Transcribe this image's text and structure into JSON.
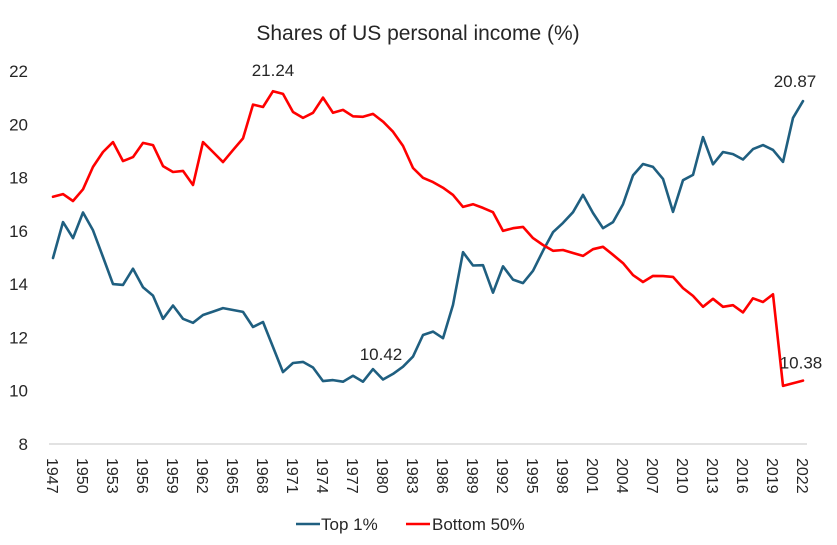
{
  "chart_data": {
    "type": "line",
    "title": "Shares of US personal income (%)",
    "xlabel": "",
    "ylabel": "",
    "ylim": [
      8,
      22
    ],
    "yticks": [
      "8",
      "10",
      "12",
      "14",
      "16",
      "18",
      "20",
      "22"
    ],
    "grid": false,
    "legend_position": "bottom",
    "x": [
      1947,
      1948,
      1949,
      1950,
      1951,
      1952,
      1953,
      1954,
      1955,
      1956,
      1957,
      1958,
      1959,
      1960,
      1961,
      1962,
      1963,
      1964,
      1965,
      1966,
      1967,
      1968,
      1969,
      1970,
      1971,
      1972,
      1973,
      1974,
      1975,
      1976,
      1977,
      1978,
      1979,
      1980,
      1981,
      1982,
      1983,
      1984,
      1985,
      1986,
      1987,
      1988,
      1989,
      1990,
      1991,
      1992,
      1993,
      1994,
      1995,
      1996,
      1997,
      1998,
      1999,
      2000,
      2001,
      2002,
      2003,
      2004,
      2005,
      2006,
      2007,
      2008,
      2009,
      2010,
      2011,
      2012,
      2013,
      2014,
      2015,
      2016,
      2017,
      2018,
      2019,
      2020,
      2021,
      2022
    ],
    "xtick_labels": [
      "1947",
      "1950",
      "1953",
      "1956",
      "1959",
      "1962",
      "1965",
      "1968",
      "1971",
      "1974",
      "1977",
      "1980",
      "1983",
      "1986",
      "1989",
      "1992",
      "1995",
      "1998",
      "2001",
      "2004",
      "2007",
      "2010",
      "2013",
      "2016",
      "2019",
      "2022"
    ],
    "series": [
      {
        "name": "Top 1%",
        "color": "#1f5f80",
        "values": [
          14.98,
          16.33,
          15.73,
          16.69,
          16.02,
          15.02,
          14.0,
          13.97,
          14.58,
          13.88,
          13.57,
          12.7,
          13.2,
          12.7,
          12.55,
          12.84,
          12.97,
          13.1,
          13.03,
          12.96,
          12.39,
          12.58,
          11.64,
          10.7,
          11.04,
          11.08,
          10.87,
          10.36,
          10.4,
          10.34,
          10.56,
          10.34,
          10.81,
          10.42,
          10.63,
          10.9,
          11.28,
          12.09,
          12.22,
          11.97,
          13.22,
          15.2,
          14.7,
          14.71,
          13.68,
          14.67,
          14.17,
          14.04,
          14.5,
          15.25,
          15.95,
          16.3,
          16.7,
          17.35,
          16.67,
          16.1,
          16.33,
          17.0,
          18.08,
          18.51,
          18.4,
          17.95,
          16.71,
          17.9,
          18.1,
          19.52,
          18.5,
          18.96,
          18.88,
          18.68,
          19.07,
          19.22,
          19.04,
          18.59,
          20.24,
          20.87
        ]
      },
      {
        "name": "Bottom 50%",
        "color": "#ff0000",
        "values": [
          17.28,
          17.38,
          17.12,
          17.56,
          18.4,
          18.96,
          19.33,
          18.62,
          18.77,
          19.3,
          19.22,
          18.43,
          18.21,
          18.25,
          17.72,
          19.33,
          18.96,
          18.58,
          19.03,
          19.47,
          20.74,
          20.65,
          21.24,
          21.14,
          20.46,
          20.24,
          20.43,
          21.0,
          20.43,
          20.54,
          20.3,
          20.28,
          20.39,
          20.1,
          19.72,
          19.19,
          18.36,
          17.99,
          17.83,
          17.62,
          17.35,
          16.9,
          17.0,
          16.86,
          16.7,
          16.0,
          16.1,
          16.15,
          15.73,
          15.47,
          15.25,
          15.28,
          15.17,
          15.06,
          15.31,
          15.4,
          15.1,
          14.79,
          14.34,
          14.08,
          14.31,
          14.3,
          14.27,
          13.85,
          13.56,
          13.15,
          13.45,
          13.15,
          13.21,
          12.94,
          13.47,
          13.33,
          13.62,
          10.18,
          10.28,
          10.38
        ]
      }
    ],
    "annotations": [
      {
        "text": "21.24",
        "series": "Bottom 50%",
        "x": 1969
      },
      {
        "text": "10.42",
        "series": "Top 1%",
        "x": 1980
      },
      {
        "text": "20.87",
        "series": "Top 1%",
        "x": 2022
      },
      {
        "text": "10.38",
        "series": "Bottom 50%",
        "x": 2022
      }
    ],
    "legend": [
      "Top 1%",
      "Bottom 50%"
    ]
  }
}
